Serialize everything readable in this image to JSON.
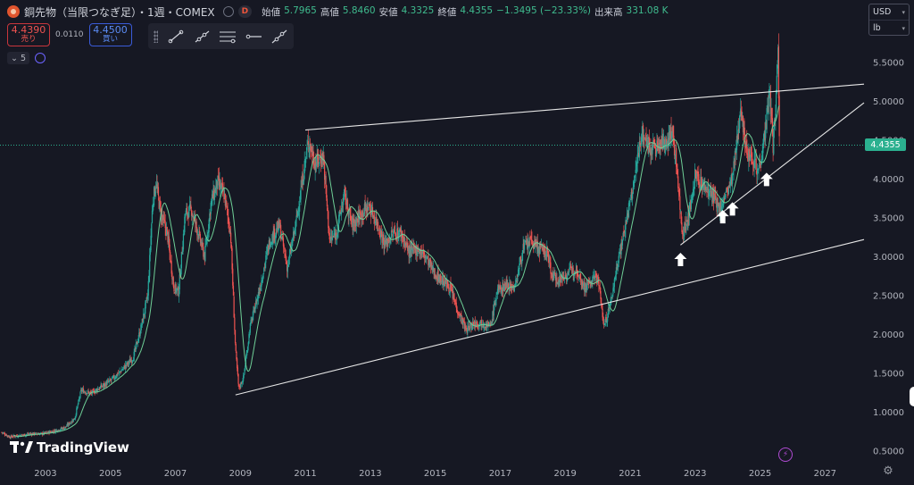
{
  "header": {
    "title": "銅先物（当限つなぎ足）・1週・COMEX",
    "badge": "D",
    "ohlc": [
      {
        "key": "始値",
        "value": "5.7965"
      },
      {
        "key": "高値",
        "value": "5.8460"
      },
      {
        "key": "安値",
        "value": "4.3325"
      },
      {
        "key": "終値",
        "value": "4.4355"
      },
      {
        "key": "",
        "value": "−1.3495 (−23.33%)"
      },
      {
        "key": "出来高",
        "value": "331.08 K"
      }
    ]
  },
  "trade": {
    "sell_price": "4.4390",
    "sell_label": "売り",
    "spread": "0.0110",
    "buy_price": "4.4500",
    "buy_label": "買い"
  },
  "indicators": {
    "count": "5"
  },
  "drawing_tools": [
    "trend-line-tool",
    "ray-tool",
    "parallel-channel-tool",
    "horizontal-ray-tool",
    "extended-line-tool"
  ],
  "currency": {
    "currency": "USD",
    "unit": "lb"
  },
  "last_price": "4.4355",
  "branding": "TradingView",
  "colors": {
    "background": "#161823",
    "up": "#26a69a",
    "down": "#ef5350",
    "ma": "#6fcf97",
    "last_price": "#2bb08f",
    "trendline": "#e6e6e6"
  },
  "chart_data": {
    "type": "candlestick",
    "timeframe": "1W",
    "x_axis": {
      "range_years": [
        2001.6,
        2028.2
      ],
      "ticks": [
        "2003",
        "2005",
        "2007",
        "2009",
        "2011",
        "2013",
        "2015",
        "2017",
        "2019",
        "2021",
        "2023",
        "2025",
        "2027"
      ]
    },
    "y_axis": {
      "range": [
        0.44,
        6.05
      ],
      "ticks": [
        "0.5000",
        "1.0000",
        "1.5000",
        "2.0000",
        "2.5000",
        "3.0000",
        "3.5000",
        "4.0000",
        "4.5000",
        "5.0000",
        "5.5000"
      ],
      "side": "right"
    },
    "grid": false,
    "price_path": [
      [
        2001.65,
        0.74
      ],
      [
        2001.9,
        0.68
      ],
      [
        2002.2,
        0.7
      ],
      [
        2002.6,
        0.72
      ],
      [
        2002.9,
        0.72
      ],
      [
        2003.3,
        0.76
      ],
      [
        2003.6,
        0.8
      ],
      [
        2003.9,
        0.92
      ],
      [
        2004.1,
        1.28
      ],
      [
        2004.4,
        1.24
      ],
      [
        2004.7,
        1.32
      ],
      [
        2005.0,
        1.4
      ],
      [
        2005.3,
        1.52
      ],
      [
        2005.7,
        1.7
      ],
      [
        2005.95,
        2.1
      ],
      [
        2006.15,
        2.5
      ],
      [
        2006.3,
        3.7
      ],
      [
        2006.4,
        3.95
      ],
      [
        2006.55,
        3.55
      ],
      [
        2006.75,
        3.3
      ],
      [
        2006.95,
        2.6
      ],
      [
        2007.1,
        2.55
      ],
      [
        2007.3,
        3.55
      ],
      [
        2007.5,
        3.6
      ],
      [
        2007.7,
        3.3
      ],
      [
        2007.9,
        3.0
      ],
      [
        2008.1,
        3.7
      ],
      [
        2008.3,
        3.95
      ],
      [
        2008.5,
        3.8
      ],
      [
        2008.7,
        3.3
      ],
      [
        2008.85,
        1.8
      ],
      [
        2008.95,
        1.3
      ],
      [
        2009.1,
        1.45
      ],
      [
        2009.3,
        2.1
      ],
      [
        2009.6,
        2.6
      ],
      [
        2009.9,
        3.2
      ],
      [
        2010.2,
        3.4
      ],
      [
        2010.45,
        2.85
      ],
      [
        2010.7,
        3.4
      ],
      [
        2010.95,
        4.1
      ],
      [
        2011.1,
        4.5
      ],
      [
        2011.3,
        4.2
      ],
      [
        2011.55,
        4.3
      ],
      [
        2011.75,
        3.2
      ],
      [
        2011.95,
        3.3
      ],
      [
        2012.2,
        3.8
      ],
      [
        2012.45,
        3.4
      ],
      [
        2012.7,
        3.55
      ],
      [
        2012.95,
        3.65
      ],
      [
        2013.2,
        3.45
      ],
      [
        2013.45,
        3.15
      ],
      [
        2013.7,
        3.3
      ],
      [
        2013.95,
        3.3
      ],
      [
        2014.2,
        3.05
      ],
      [
        2014.45,
        3.1
      ],
      [
        2014.7,
        3.0
      ],
      [
        2014.95,
        2.8
      ],
      [
        2015.2,
        2.7
      ],
      [
        2015.45,
        2.6
      ],
      [
        2015.7,
        2.3
      ],
      [
        2015.95,
        2.05
      ],
      [
        2016.2,
        2.15
      ],
      [
        2016.45,
        2.15
      ],
      [
        2016.7,
        2.1
      ],
      [
        2016.9,
        2.55
      ],
      [
        2017.2,
        2.65
      ],
      [
        2017.45,
        2.6
      ],
      [
        2017.7,
        3.1
      ],
      [
        2017.95,
        3.2
      ],
      [
        2018.2,
        3.1
      ],
      [
        2018.45,
        3.05
      ],
      [
        2018.6,
        2.75
      ],
      [
        2018.85,
        2.7
      ],
      [
        2019.1,
        2.8
      ],
      [
        2019.35,
        2.85
      ],
      [
        2019.6,
        2.6
      ],
      [
        2019.85,
        2.7
      ],
      [
        2020.0,
        2.75
      ],
      [
        2020.2,
        2.1
      ],
      [
        2020.4,
        2.4
      ],
      [
        2020.6,
        2.9
      ],
      [
        2020.85,
        3.4
      ],
      [
        2021.1,
        3.9
      ],
      [
        2021.35,
        4.6
      ],
      [
        2021.6,
        4.4
      ],
      [
        2021.85,
        4.4
      ],
      [
        2022.1,
        4.5
      ],
      [
        2022.3,
        4.6
      ],
      [
        2022.45,
        4.1
      ],
      [
        2022.6,
        3.3
      ],
      [
        2022.8,
        3.5
      ],
      [
        2023.0,
        4.05
      ],
      [
        2023.25,
        3.9
      ],
      [
        2023.5,
        3.8
      ],
      [
        2023.75,
        3.6
      ],
      [
        2023.95,
        3.8
      ],
      [
        2024.15,
        4.0
      ],
      [
        2024.3,
        4.5
      ],
      [
        2024.4,
        5.0
      ],
      [
        2024.55,
        4.4
      ],
      [
        2024.75,
        4.3
      ],
      [
        2024.95,
        4.1
      ],
      [
        2025.15,
        4.6
      ],
      [
        2025.3,
        5.1
      ],
      [
        2025.4,
        4.4
      ],
      [
        2025.5,
        5.1
      ],
      [
        2025.55,
        5.7
      ],
      [
        2025.6,
        4.44
      ]
    ],
    "annotations": [
      {
        "type": "trendline",
        "name": "upper-resistance-line",
        "points": [
          [
            2011.0,
            4.63
          ],
          [
            2028.2,
            5.22
          ]
        ]
      },
      {
        "type": "trendline",
        "name": "lower-support-line",
        "points": [
          [
            2008.85,
            1.22
          ],
          [
            2028.2,
            3.22
          ]
        ]
      },
      {
        "type": "trendline",
        "name": "rising-support-line",
        "points": [
          [
            2022.55,
            3.15
          ],
          [
            2028.2,
            4.98
          ]
        ]
      },
      {
        "type": "arrow",
        "direction": "up",
        "points_to": [
          2022.55,
          3.05
        ]
      },
      {
        "type": "arrow",
        "direction": "up",
        "points_to": [
          2023.85,
          3.6
        ]
      },
      {
        "type": "arrow",
        "direction": "up",
        "points_to": [
          2024.15,
          3.7
        ]
      },
      {
        "type": "arrow",
        "direction": "up",
        "points_to": [
          2025.2,
          4.08
        ]
      }
    ],
    "last_price_line": 4.4355
  }
}
